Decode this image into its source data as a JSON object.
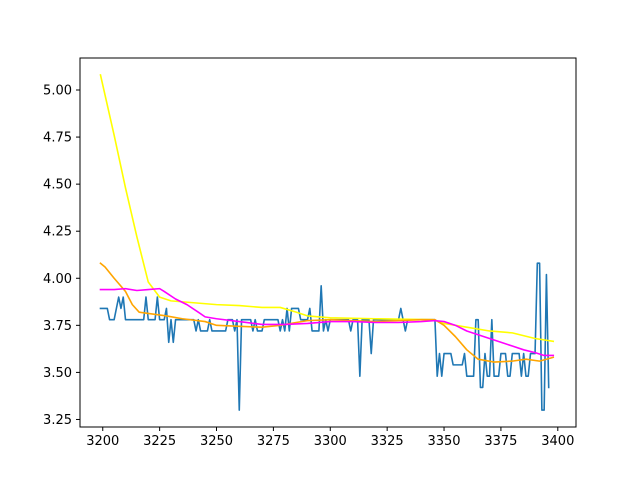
{
  "chart_data": {
    "type": "line",
    "title": "",
    "xlabel": "",
    "ylabel": "",
    "xlim": [
      3190,
      3408
    ],
    "ylim": [
      3.21,
      5.17
    ],
    "x_ticks": [
      3200,
      3225,
      3250,
      3275,
      3300,
      3325,
      3350,
      3375,
      3400
    ],
    "y_ticks": [
      3.25,
      3.5,
      3.75,
      4.0,
      4.25,
      4.5,
      4.75,
      5.0
    ],
    "x_tick_labels": [
      "3200",
      "3225",
      "3250",
      "3275",
      "3300",
      "3325",
      "3350",
      "3375",
      "3400"
    ],
    "y_tick_labels": [
      "3.25",
      "3.50",
      "3.75",
      "4.00",
      "4.25",
      "4.50",
      "4.75",
      "5.00"
    ],
    "grid": false,
    "series": [
      {
        "color": "#1f77b4",
        "points": [
          [
            3199,
            3.84
          ],
          [
            3202,
            3.84
          ],
          [
            3203,
            3.78
          ],
          [
            3205,
            3.78
          ],
          [
            3206,
            3.84
          ],
          [
            3207,
            3.9
          ],
          [
            3208,
            3.84
          ],
          [
            3209,
            3.9
          ],
          [
            3210,
            3.78
          ],
          [
            3218,
            3.78
          ],
          [
            3219,
            3.9
          ],
          [
            3220,
            3.78
          ],
          [
            3223,
            3.78
          ],
          [
            3224,
            3.9
          ],
          [
            3225,
            3.78
          ],
          [
            3227,
            3.78
          ],
          [
            3228,
            3.84
          ],
          [
            3229,
            3.66
          ],
          [
            3230,
            3.78
          ],
          [
            3231,
            3.66
          ],
          [
            3232,
            3.78
          ],
          [
            3240,
            3.78
          ],
          [
            3241,
            3.72
          ],
          [
            3242,
            3.78
          ],
          [
            3243,
            3.72
          ],
          [
            3246,
            3.72
          ],
          [
            3247,
            3.78
          ],
          [
            3248,
            3.72
          ],
          [
            3254,
            3.72
          ],
          [
            3255,
            3.78
          ],
          [
            3257,
            3.78
          ],
          [
            3258,
            3.72
          ],
          [
            3259,
            3.78
          ],
          [
            3260,
            3.3
          ],
          [
            3261,
            3.78
          ],
          [
            3265,
            3.78
          ],
          [
            3266,
            3.72
          ],
          [
            3267,
            3.78
          ],
          [
            3268,
            3.72
          ],
          [
            3270,
            3.72
          ],
          [
            3271,
            3.78
          ],
          [
            3277,
            3.78
          ],
          [
            3278,
            3.72
          ],
          [
            3279,
            3.78
          ],
          [
            3280,
            3.72
          ],
          [
            3281,
            3.84
          ],
          [
            3282,
            3.72
          ],
          [
            3283,
            3.84
          ],
          [
            3286,
            3.84
          ],
          [
            3287,
            3.78
          ],
          [
            3290,
            3.78
          ],
          [
            3291,
            3.84
          ],
          [
            3292,
            3.72
          ],
          [
            3295,
            3.72
          ],
          [
            3296,
            3.96
          ],
          [
            3297,
            3.72
          ],
          [
            3298,
            3.78
          ],
          [
            3299,
            3.72
          ],
          [
            3300,
            3.78
          ],
          [
            3308,
            3.78
          ],
          [
            3309,
            3.72
          ],
          [
            3310,
            3.78
          ],
          [
            3312,
            3.78
          ],
          [
            3313,
            3.48
          ],
          [
            3314,
            3.78
          ],
          [
            3317,
            3.78
          ],
          [
            3318,
            3.6
          ],
          [
            3319,
            3.78
          ],
          [
            3330,
            3.78
          ],
          [
            3331,
            3.84
          ],
          [
            3332,
            3.78
          ],
          [
            3333,
            3.72
          ],
          [
            3334,
            3.78
          ],
          [
            3346,
            3.78
          ],
          [
            3347,
            3.48
          ],
          [
            3348,
            3.6
          ],
          [
            3349,
            3.48
          ],
          [
            3350,
            3.6
          ],
          [
            3353,
            3.6
          ],
          [
            3354,
            3.54
          ],
          [
            3358,
            3.54
          ],
          [
            3359,
            3.6
          ],
          [
            3360,
            3.48
          ],
          [
            3363,
            3.48
          ],
          [
            3364,
            3.78
          ],
          [
            3365,
            3.78
          ],
          [
            3366,
            3.42
          ],
          [
            3367,
            3.42
          ],
          [
            3368,
            3.6
          ],
          [
            3369,
            3.48
          ],
          [
            3370,
            3.48
          ],
          [
            3371,
            3.78
          ],
          [
            3372,
            3.48
          ],
          [
            3374,
            3.48
          ],
          [
            3375,
            3.6
          ],
          [
            3377,
            3.6
          ],
          [
            3378,
            3.48
          ],
          [
            3379,
            3.48
          ],
          [
            3380,
            3.6
          ],
          [
            3383,
            3.6
          ],
          [
            3384,
            3.48
          ],
          [
            3385,
            3.6
          ],
          [
            3386,
            3.48
          ],
          [
            3387,
            3.48
          ],
          [
            3388,
            3.6
          ],
          [
            3390,
            3.6
          ],
          [
            3391,
            4.08
          ],
          [
            3392,
            4.08
          ],
          [
            3393,
            3.3
          ],
          [
            3394,
            3.3
          ],
          [
            3395,
            4.02
          ],
          [
            3396,
            3.42
          ]
        ]
      },
      {
        "color": "#ffff00",
        "points": [
          [
            3199,
            5.08
          ],
          [
            3205,
            4.76
          ],
          [
            3210,
            4.48
          ],
          [
            3215,
            4.22
          ],
          [
            3220,
            3.98
          ],
          [
            3225,
            3.9
          ],
          [
            3230,
            3.88
          ],
          [
            3240,
            3.87
          ],
          [
            3250,
            3.86
          ],
          [
            3260,
            3.855
          ],
          [
            3270,
            3.845
          ],
          [
            3278,
            3.845
          ],
          [
            3285,
            3.82
          ],
          [
            3290,
            3.8
          ],
          [
            3300,
            3.79
          ],
          [
            3320,
            3.785
          ],
          [
            3345,
            3.78
          ],
          [
            3350,
            3.76
          ],
          [
            3360,
            3.74
          ],
          [
            3370,
            3.72
          ],
          [
            3380,
            3.71
          ],
          [
            3390,
            3.68
          ],
          [
            3398,
            3.665
          ]
        ]
      },
      {
        "color": "#ffa500",
        "points": [
          [
            3199,
            4.08
          ],
          [
            3201,
            4.06
          ],
          [
            3205,
            4.0
          ],
          [
            3210,
            3.93
          ],
          [
            3213,
            3.86
          ],
          [
            3216,
            3.82
          ],
          [
            3222,
            3.81
          ],
          [
            3228,
            3.8
          ],
          [
            3235,
            3.785
          ],
          [
            3245,
            3.77
          ],
          [
            3250,
            3.75
          ],
          [
            3260,
            3.745
          ],
          [
            3270,
            3.74
          ],
          [
            3278,
            3.75
          ],
          [
            3285,
            3.765
          ],
          [
            3290,
            3.775
          ],
          [
            3300,
            3.78
          ],
          [
            3310,
            3.775
          ],
          [
            3320,
            3.77
          ],
          [
            3330,
            3.775
          ],
          [
            3340,
            3.78
          ],
          [
            3346,
            3.78
          ],
          [
            3350,
            3.75
          ],
          [
            3355,
            3.69
          ],
          [
            3360,
            3.62
          ],
          [
            3365,
            3.57
          ],
          [
            3372,
            3.555
          ],
          [
            3380,
            3.56
          ],
          [
            3386,
            3.57
          ],
          [
            3392,
            3.56
          ],
          [
            3398,
            3.58
          ]
        ]
      },
      {
        "color": "#ff00ff",
        "points": [
          [
            3199,
            3.94
          ],
          [
            3205,
            3.94
          ],
          [
            3210,
            3.945
          ],
          [
            3215,
            3.935
          ],
          [
            3220,
            3.94
          ],
          [
            3225,
            3.945
          ],
          [
            3227,
            3.93
          ],
          [
            3232,
            3.89
          ],
          [
            3237,
            3.86
          ],
          [
            3242,
            3.82
          ],
          [
            3245,
            3.795
          ],
          [
            3250,
            3.785
          ],
          [
            3260,
            3.77
          ],
          [
            3270,
            3.755
          ],
          [
            3280,
            3.755
          ],
          [
            3290,
            3.76
          ],
          [
            3300,
            3.77
          ],
          [
            3310,
            3.77
          ],
          [
            3320,
            3.765
          ],
          [
            3330,
            3.765
          ],
          [
            3340,
            3.77
          ],
          [
            3346,
            3.775
          ],
          [
            3350,
            3.77
          ],
          [
            3355,
            3.75
          ],
          [
            3360,
            3.72
          ],
          [
            3365,
            3.7
          ],
          [
            3370,
            3.68
          ],
          [
            3375,
            3.66
          ],
          [
            3380,
            3.64
          ],
          [
            3385,
            3.62
          ],
          [
            3390,
            3.605
          ],
          [
            3394,
            3.59
          ],
          [
            3398,
            3.59
          ]
        ]
      }
    ]
  }
}
